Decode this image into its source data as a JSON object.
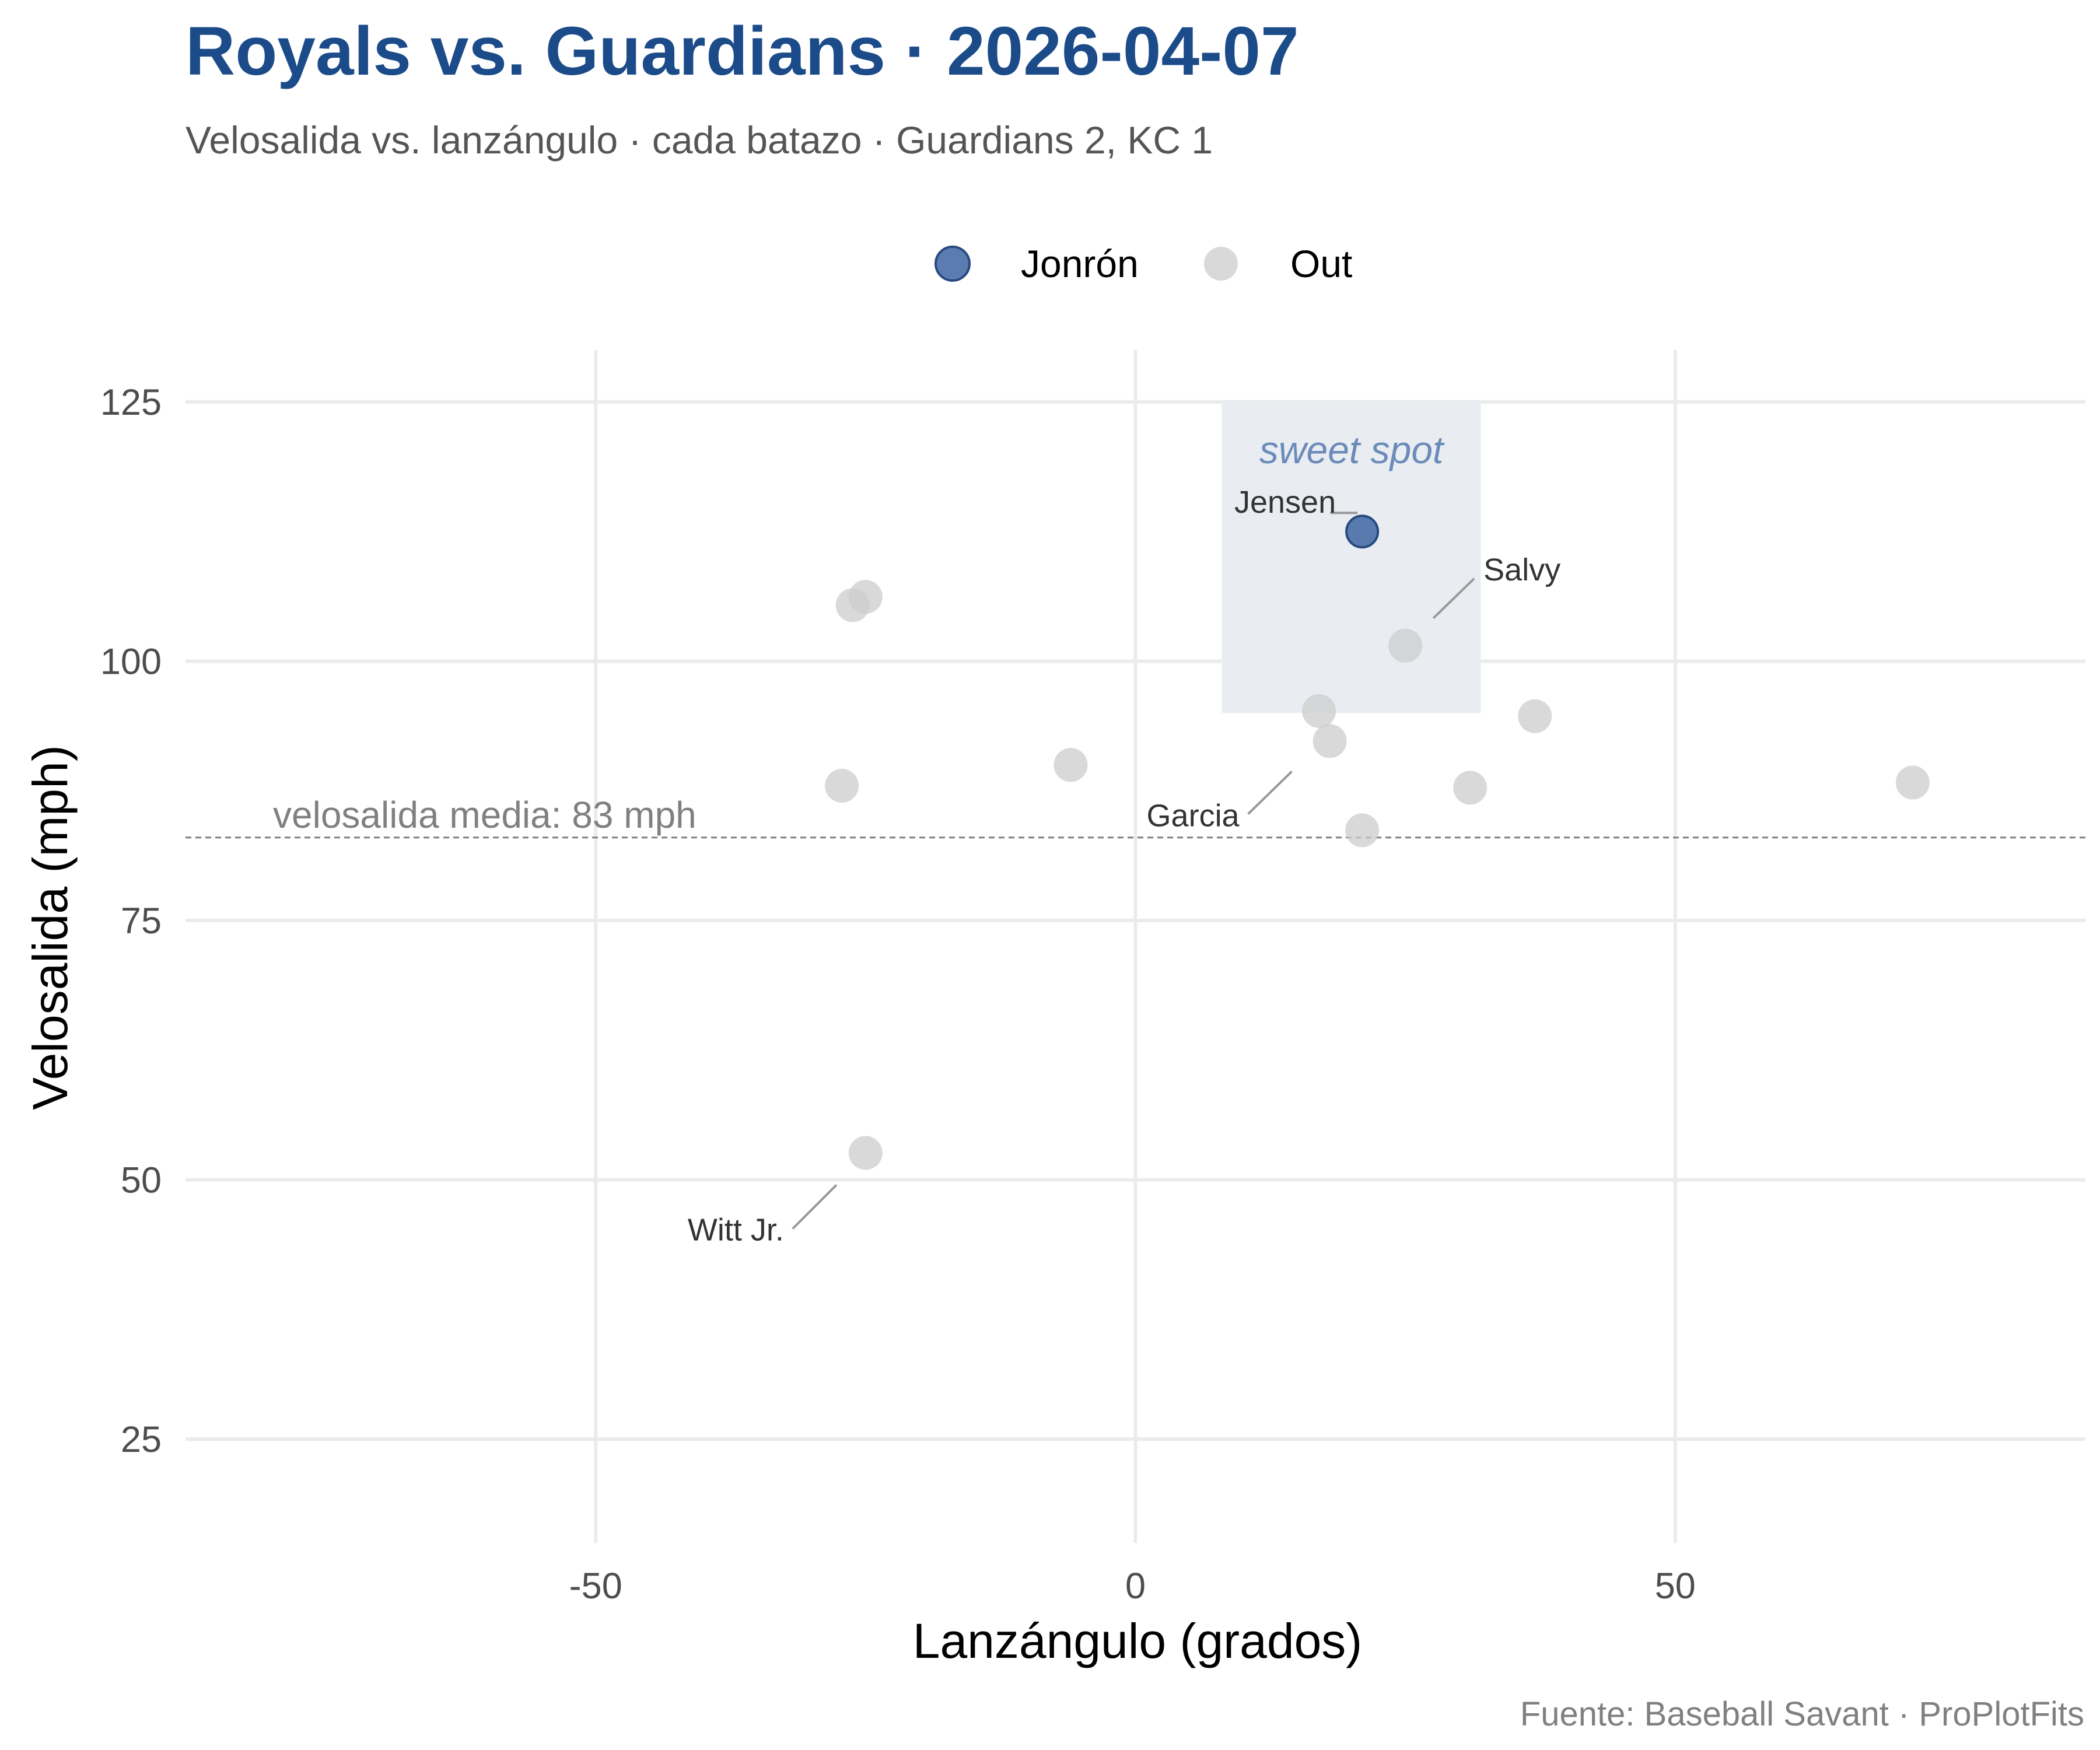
{
  "chart_data": {
    "type": "scatter",
    "title": "Royals vs. Guardians · 2026-04-07",
    "subtitle": "Velosalida vs. lanzángulo · cada batazo · Guardians 2, KC 1",
    "xlabel": "Lanzángulo (grados)",
    "ylabel": "Velosalida (mph)",
    "caption": "Fuente: Baseball Savant · ProPlotFits",
    "xlim": [
      -88,
      88
    ],
    "ylim": [
      15,
      130
    ],
    "x_ticks": [
      {
        "value": -50,
        "label": "-50"
      },
      {
        "value": 0,
        "label": "0"
      },
      {
        "value": 50,
        "label": "50"
      }
    ],
    "y_ticks": [
      {
        "value": 25,
        "label": "25"
      },
      {
        "value": 50,
        "label": "50"
      },
      {
        "value": 75,
        "label": "75"
      },
      {
        "value": 100,
        "label": "100"
      },
      {
        "value": 125,
        "label": "125"
      }
    ],
    "grid": true,
    "legend_position": "top",
    "legend": [
      {
        "name": "Jonrón",
        "color": "#3e65a3"
      },
      {
        "name": "Out",
        "color": "#cccccc"
      }
    ],
    "colors": {
      "title": "#1c4b8a",
      "subtitle": "#555555",
      "home_run": "#3e65a3",
      "home_run_stroke": "#28497f",
      "out": "#cccccc",
      "grid": "#ebebeb",
      "sweet_spot_fill": "#e9edf2",
      "sweet_spot_text": "#6b8bb9",
      "mean_line": "#808080",
      "caption": "#808080",
      "axis_label": "#000000",
      "tick_label": "#4d4d4d",
      "leader": "#999999",
      "point_label": "#333333"
    },
    "sweet_spot": {
      "x_min": 8,
      "x_max": 32,
      "y_min": 95,
      "y_max": 125,
      "label": "sweet spot"
    },
    "mean_line": {
      "value": 83,
      "label": "velosalida media: 83 mph"
    },
    "points": [
      {
        "x": 21,
        "y": 112.5,
        "result": "Jonrón",
        "label": "Jensen"
      },
      {
        "x": 25,
        "y": 101.5,
        "result": "Out",
        "label": "Salvy"
      },
      {
        "x": 17,
        "y": 95.2,
        "result": "Out",
        "label": ""
      },
      {
        "x": 18,
        "y": 92.3,
        "result": "Out",
        "label": "Garcia"
      },
      {
        "x": 21,
        "y": 83.7,
        "result": "Out",
        "label": ""
      },
      {
        "x": 31,
        "y": 87.8,
        "result": "Out",
        "label": ""
      },
      {
        "x": 37,
        "y": 94.7,
        "result": "Out",
        "label": ""
      },
      {
        "x": 72,
        "y": 88.3,
        "result": "Out",
        "label": ""
      },
      {
        "x": -6,
        "y": 90.0,
        "result": "Out",
        "label": ""
      },
      {
        "x": -25,
        "y": 106.2,
        "result": "Out",
        "label": ""
      },
      {
        "x": -26.2,
        "y": 105.4,
        "result": "Out",
        "label": ""
      },
      {
        "x": -27.2,
        "y": 88.0,
        "result": "Out",
        "label": ""
      },
      {
        "x": -25,
        "y": 52.6,
        "result": "Out",
        "label": "Witt Jr."
      }
    ]
  }
}
